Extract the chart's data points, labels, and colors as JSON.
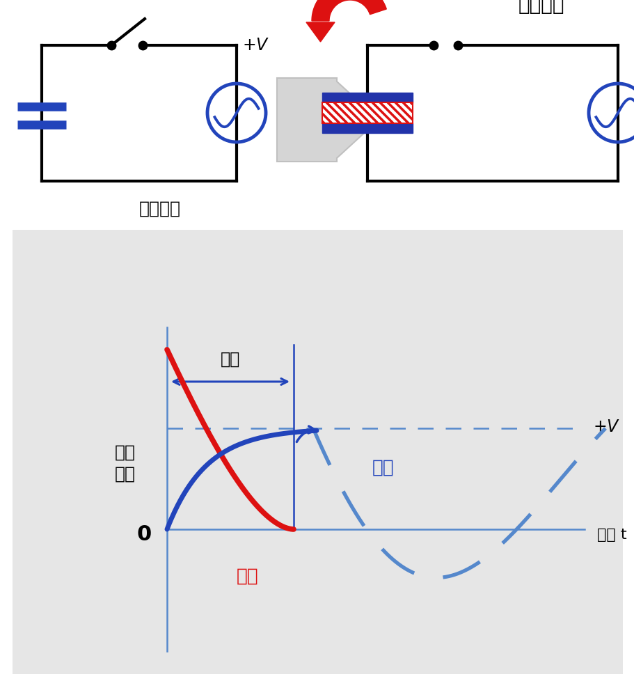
{
  "bg_color": "#ffffff",
  "graph_bg_color": "#e6e6e6",
  "title_circuit_left": "交流電源",
  "title_circuit_right": "充電電流",
  "label_voltage_current": "電圧\n電流",
  "label_zero": "0",
  "label_plus_v": "+V",
  "label_jikan": "時間 t",
  "label_chuden": "充電",
  "label_denatu": "電圧",
  "label_denryu": "電流",
  "blue_color": "#2244bb",
  "blue_light": "#4488cc",
  "red_color": "#dd1111",
  "dashed_line_color": "#5588cc",
  "axis_color": "#5588cc",
  "cap_blue": "#2233aa",
  "cap_red": "#dd1111",
  "circuit_lw": 3.0,
  "fig_width": 9.12,
  "fig_height": 9.75,
  "dpi": 100
}
